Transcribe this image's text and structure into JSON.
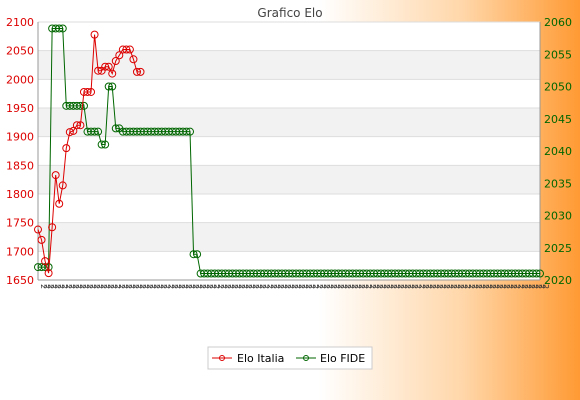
{
  "chart_data": {
    "type": "line",
    "title": "Grafico Elo",
    "grid": true,
    "legend_position": "bottom-center",
    "y_left": {
      "min": 1650,
      "max": 2100,
      "ticks": [
        "1650",
        "1700",
        "1750",
        "1800",
        "1850",
        "1900",
        "1950",
        "2000",
        "2050",
        "2100"
      ],
      "color": "#dd0000"
    },
    "y_right": {
      "min": 2020,
      "max": 2060,
      "ticks": [
        "2020",
        "2025",
        "2030",
        "2035",
        "2040",
        "2045",
        "2050",
        "2055",
        "2060"
      ],
      "color": "#006600"
    },
    "x_tick_label": "2",
    "series": [
      {
        "name": "Elo Italia",
        "axis": "left",
        "color": "#dd0000",
        "values": [
          1738,
          1720,
          1683,
          1662,
          1742,
          1833,
          1783,
          1815,
          1880,
          1908,
          1910,
          1920,
          1920,
          1978,
          1978,
          1978,
          2078,
          2015,
          2015,
          2022,
          2022,
          2010,
          2032,
          2042,
          2052,
          2052,
          2052,
          2035,
          2013,
          2013
        ]
      },
      {
        "name": "Elo FIDE",
        "axis": "right",
        "color": "#006600",
        "values": [
          2022,
          2022,
          2022,
          2022,
          2059,
          2059,
          2059,
          2059,
          2047,
          2047,
          2047,
          2047,
          2047,
          2047,
          2043,
          2043,
          2043,
          2043,
          2041,
          2041,
          2050,
          2050,
          2043.5,
          2043.5,
          2043,
          2043,
          2043,
          2043,
          2043,
          2043,
          2043,
          2043,
          2043,
          2043,
          2043,
          2043,
          2043,
          2043,
          2043,
          2043,
          2043,
          2043,
          2043,
          2043,
          2024,
          2024,
          2021,
          2021,
          2021,
          2021,
          2021,
          2021,
          2021,
          2021,
          2021,
          2021,
          2021,
          2021,
          2021,
          2021,
          2021,
          2021,
          2021,
          2021,
          2021,
          2021,
          2021,
          2021,
          2021,
          2021,
          2021,
          2021,
          2021,
          2021,
          2021,
          2021,
          2021,
          2021,
          2021,
          2021,
          2021,
          2021,
          2021,
          2021,
          2021,
          2021,
          2021,
          2021,
          2021,
          2021,
          2021,
          2021,
          2021,
          2021,
          2021,
          2021,
          2021,
          2021,
          2021,
          2021,
          2021,
          2021,
          2021,
          2021,
          2021,
          2021,
          2021,
          2021,
          2021,
          2021,
          2021,
          2021,
          2021,
          2021,
          2021,
          2021,
          2021,
          2021,
          2021,
          2021,
          2021,
          2021,
          2021,
          2021,
          2021,
          2021,
          2021,
          2021,
          2021,
          2021,
          2021,
          2021,
          2021,
          2021,
          2021,
          2021,
          2021,
          2021,
          2021,
          2021,
          2021,
          2021,
          2021
        ]
      }
    ]
  }
}
